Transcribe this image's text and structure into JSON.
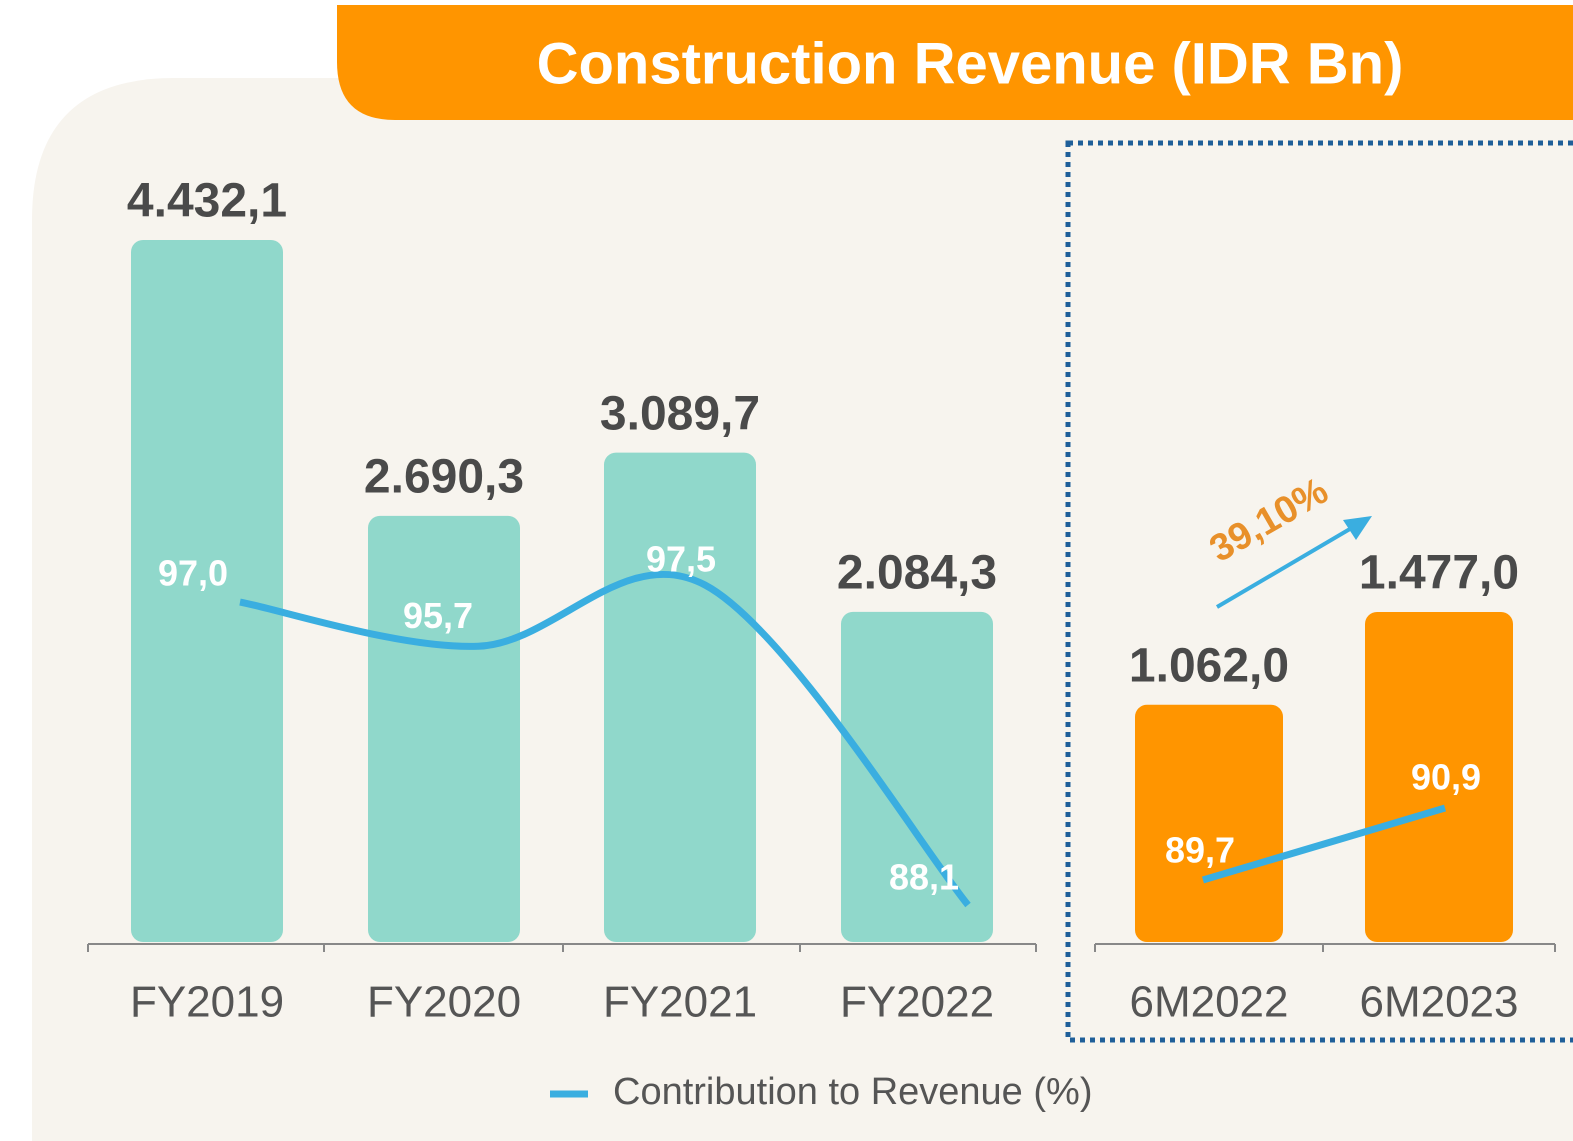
{
  "chart_data": [
    {
      "type": "bar",
      "title": "Construction Revenue (IDR Bn)",
      "categories": [
        "FY2019",
        "FY2020",
        "FY2021",
        "FY2022"
      ],
      "values": [
        4432.1,
        2690.3,
        3089.7,
        2084.3
      ],
      "value_labels": [
        "4.432,1",
        "2.690,3",
        "3.089,7",
        "2.084,3"
      ],
      "color": "#90d8cb",
      "series": [
        {
          "type": "line",
          "name": "Contribution to Revenue (%)",
          "color": "#3aaee0",
          "values": [
            97.0,
            95.7,
            97.5,
            88.1
          ],
          "value_labels": [
            "97,0",
            "95,7",
            "97,5",
            "88,1"
          ]
        }
      ]
    },
    {
      "type": "bar",
      "categories": [
        "6M2022",
        "6M2023"
      ],
      "values": [
        1062.0,
        1477.0
      ],
      "value_labels": [
        "1.062,0",
        "1.477,0"
      ],
      "color": "#ff9500",
      "annotations": [
        "39,10%"
      ],
      "series": [
        {
          "type": "line",
          "color": "#3aaee0",
          "values": [
            89.7,
            90.9
          ],
          "value_labels": [
            "89,7",
            "90,9"
          ]
        }
      ]
    }
  ]
}
